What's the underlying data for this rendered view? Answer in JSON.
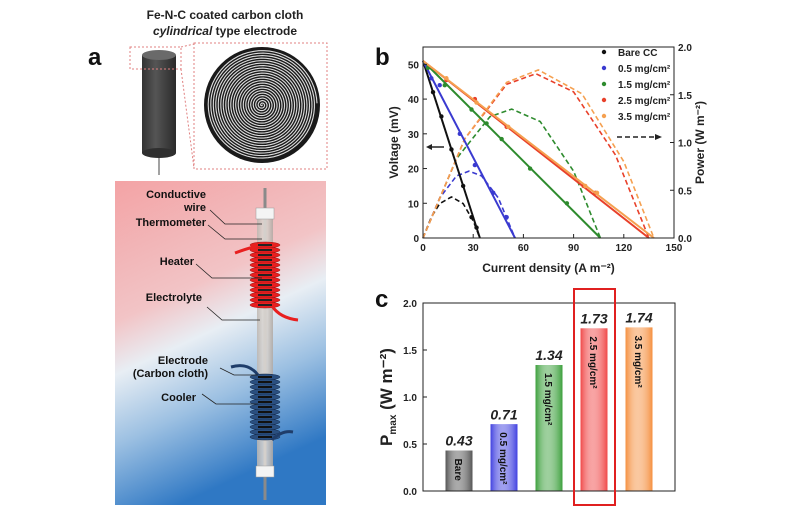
{
  "panel_a": {
    "label": "a",
    "title_line1": "Fe-N-C coated carbon cloth",
    "title_italic": "cylindrical",
    "title_rest": " type electrode",
    "labels": [
      "Conductive",
      "wire",
      "Thermometer",
      "Heater",
      "Electrolyte",
      "Electrode",
      "(Carbon cloth)",
      "Cooler"
    ]
  },
  "chart_data": [
    {
      "panel": "b",
      "type": "line",
      "xlabel": "Current density (A m⁻²)",
      "ylabel": "Voltage (mV)",
      "y2label": "Power (W m⁻²)",
      "xlim": [
        0,
        150
      ],
      "ylim": [
        0,
        55
      ],
      "y2lim": [
        0,
        2.0
      ],
      "xticks": [
        0,
        30,
        60,
        90,
        120,
        150
      ],
      "yticks": [
        0,
        10,
        20,
        30,
        40,
        50
      ],
      "y2ticks": [
        "0.0",
        "0.5",
        "1.0",
        "1.5",
        "2.0"
      ],
      "legend_position": "top-right",
      "series": [
        {
          "name": "Bare CC",
          "color": "#111111",
          "voltage": [
            [
              0,
              51
            ],
            [
              6,
              42
            ],
            [
              11,
              35
            ],
            [
              17,
              25.5
            ],
            [
              24,
              15
            ],
            [
              29,
              6
            ],
            [
              32,
              3
            ],
            [
              34,
              0
            ]
          ],
          "power": [
            [
              0,
              0
            ],
            [
              5,
              0.22
            ],
            [
              10,
              0.36
            ],
            [
              17,
              0.43
            ],
            [
              24,
              0.36
            ],
            [
              30,
              0.18
            ],
            [
              34,
              0
            ]
          ]
        },
        {
          "name": "0.5 mg/cm²",
          "color": "#3a3ad0",
          "voltage": [
            [
              0,
              51
            ],
            [
              5,
              46
            ],
            [
              10,
              44
            ],
            [
              22,
              30
            ],
            [
              31,
              21
            ],
            [
              42,
              13
            ],
            [
              50,
              6
            ],
            [
              55,
              0
            ]
          ],
          "power": [
            [
              0,
              0
            ],
            [
              10,
              0.42
            ],
            [
              20,
              0.65
            ],
            [
              27.5,
              0.7
            ],
            [
              35,
              0.65
            ],
            [
              45,
              0.42
            ],
            [
              55,
              0
            ]
          ]
        },
        {
          "name": "1.5 mg/cm²",
          "color": "#2e8b2e",
          "voltage": [
            [
              0,
              51
            ],
            [
              3,
              49
            ],
            [
              13,
              44
            ],
            [
              29,
              37
            ],
            [
              38,
              33
            ],
            [
              47,
              28.5
            ],
            [
              64,
              20
            ],
            [
              86,
              10
            ],
            [
              106,
              0
            ]
          ],
          "power": [
            [
              0,
              0
            ],
            [
              20,
              0.83
            ],
            [
              40,
              1.27
            ],
            [
              53,
              1.35
            ],
            [
              70,
              1.22
            ],
            [
              90,
              0.7
            ],
            [
              106,
              0
            ]
          ]
        },
        {
          "name": "2.5 mg/cm²",
          "color": "#e8402a",
          "voltage": [
            [
              0,
              51
            ],
            [
              14,
              45.5
            ],
            [
              31,
              40
            ],
            [
              50,
              32
            ],
            [
              96,
              15
            ],
            [
              103,
              13
            ],
            [
              135,
              0
            ]
          ],
          "power": [
            [
              0,
              0
            ],
            [
              25,
              1.04
            ],
            [
              50,
              1.61
            ],
            [
              67.5,
              1.72
            ],
            [
              90,
              1.53
            ],
            [
              115,
              0.87
            ],
            [
              135,
              0
            ]
          ]
        },
        {
          "name": "3.5 mg/cm²",
          "color": "#f5a050",
          "voltage": [
            [
              0,
              51
            ],
            [
              14,
              46
            ],
            [
              32,
              39
            ],
            [
              51,
              32
            ],
            [
              97,
              15
            ],
            [
              104,
              13
            ],
            [
              138,
              0
            ]
          ],
          "power": [
            [
              0,
              0
            ],
            [
              25,
              1.04
            ],
            [
              50,
              1.63
            ],
            [
              69,
              1.76
            ],
            [
              95,
              1.51
            ],
            [
              120,
              0.8
            ],
            [
              138,
              0
            ]
          ]
        }
      ]
    },
    {
      "panel": "c",
      "type": "bar",
      "ylabel": "P",
      "ylabel_sub": "max",
      "ylabel_unit": " (W m⁻²)",
      "ylim": [
        0,
        2.0
      ],
      "yticks": [
        "0.0",
        "0.5",
        "1.0",
        "1.5",
        "2.0"
      ],
      "categories": [
        "Bare",
        "0.5 mg/cm²",
        "1.5 mg/cm²",
        "2.5 mg/cm²",
        "3.5 mg/cm²"
      ],
      "values": [
        0.43,
        0.71,
        1.34,
        1.73,
        1.74
      ],
      "value_labels": [
        "0.43",
        "0.71",
        "1.34",
        "1.73",
        "1.74"
      ],
      "colors": [
        "#555555",
        "#4040e0",
        "#3ca03c",
        "#f04848",
        "#f59040"
      ],
      "highlighted": "2.5 mg/cm²",
      "highlight_color": "#e02020"
    }
  ]
}
